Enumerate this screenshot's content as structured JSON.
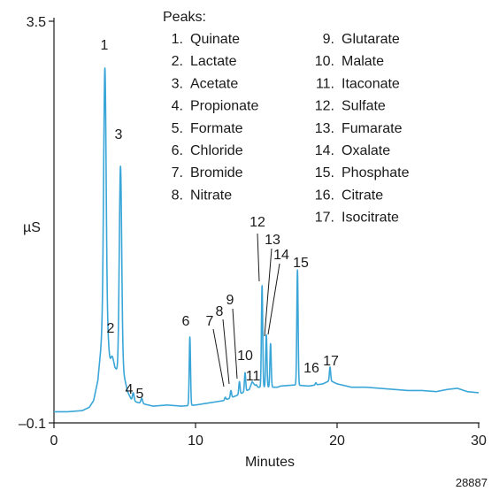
{
  "chart_data": {
    "type": "line",
    "title": "",
    "xlabel": "Minutes",
    "ylabel": "µS",
    "xlim": [
      0,
      30
    ],
    "ylim": [
      -0.1,
      3.5
    ],
    "x_ticks": [
      0,
      10,
      20,
      30
    ],
    "x_tick_labels": [
      "0",
      "10",
      "20",
      "30"
    ],
    "y_ticks": [
      -0.1,
      3.5
    ],
    "y_tick_labels": [
      "–0.1",
      "3.5"
    ],
    "grid": false,
    "legend_title": "Peaks:",
    "legend_placement": "top",
    "line_color": "#3aa6d8",
    "peaks": [
      {
        "number": "1",
        "name": "Quinate",
        "rt": 3.6,
        "height": 3.08
      },
      {
        "number": "2",
        "name": "Lactate",
        "rt": 3.95,
        "height": 0.49
      },
      {
        "number": "3",
        "name": "Acetate",
        "rt": 4.7,
        "height": 2.2
      },
      {
        "number": "4",
        "name": "Propionate",
        "rt": 5.6,
        "height": 0.17
      },
      {
        "number": "5",
        "name": "Formate",
        "rt": 6.2,
        "height": 0.12
      },
      {
        "number": "6",
        "name": "Chloride",
        "rt": 9.6,
        "height": 0.67
      },
      {
        "number": "7",
        "name": "Bromide",
        "rt": 12.1,
        "height": 0.13
      },
      {
        "number": "8",
        "name": "Nitrate",
        "rt": 12.5,
        "height": 0.19
      },
      {
        "number": "9",
        "name": "Glutarate",
        "rt": 13.1,
        "height": 0.27
      },
      {
        "number": "10",
        "name": "Malate",
        "rt": 13.5,
        "height": 0.35
      },
      {
        "number": "11",
        "name": "Itaconate",
        "rt": 14.3,
        "height": 0.24
      },
      {
        "number": "12",
        "name": "Sulfate",
        "rt": 14.7,
        "height": 1.13
      },
      {
        "number": "13",
        "name": "Fumarate",
        "rt": 15.0,
        "height": 0.69
      },
      {
        "number": "14",
        "name": "Oxalate",
        "rt": 15.3,
        "height": 0.61
      },
      {
        "number": "15",
        "name": "Phosphate",
        "rt": 17.2,
        "height": 1.27
      },
      {
        "number": "16",
        "name": "Citrate",
        "rt": 18.5,
        "height": 0.26
      },
      {
        "number": "17",
        "name": "Isocitrate",
        "rt": 19.5,
        "height": 0.4
      }
    ],
    "baseline_points": [
      [
        0,
        0.0
      ],
      [
        1,
        0.0
      ],
      [
        2,
        0.01
      ],
      [
        2.5,
        0.04
      ],
      [
        2.8,
        0.1
      ],
      [
        3.1,
        0.28
      ],
      [
        3.3,
        0.55
      ],
      [
        3.5,
        0.9
      ],
      [
        4.3,
        0.4
      ],
      [
        4.5,
        0.36
      ],
      [
        4.9,
        0.35
      ],
      [
        5.2,
        0.18
      ],
      [
        5.5,
        0.1
      ],
      [
        6,
        0.08
      ],
      [
        7,
        0.05
      ],
      [
        8,
        0.06
      ],
      [
        9,
        0.05
      ],
      [
        10,
        0.06
      ],
      [
        11,
        0.08
      ],
      [
        12,
        0.1
      ],
      [
        13,
        0.15
      ],
      [
        13.8,
        0.2
      ],
      [
        14,
        0.27
      ],
      [
        14.3,
        0.22
      ],
      [
        15.8,
        0.22
      ],
      [
        16,
        0.23
      ],
      [
        17,
        0.24
      ],
      [
        18,
        0.23
      ],
      [
        19,
        0.25
      ],
      [
        19.5,
        0.28
      ],
      [
        20,
        0.25
      ],
      [
        21,
        0.22
      ],
      [
        22,
        0.22
      ],
      [
        23,
        0.21
      ],
      [
        24,
        0.2
      ],
      [
        25,
        0.19
      ],
      [
        26,
        0.19
      ],
      [
        27,
        0.18
      ],
      [
        27.8,
        0.2
      ],
      [
        28.5,
        0.21
      ],
      [
        29.2,
        0.18
      ],
      [
        30,
        0.17
      ]
    ]
  },
  "figure_id": "28887"
}
